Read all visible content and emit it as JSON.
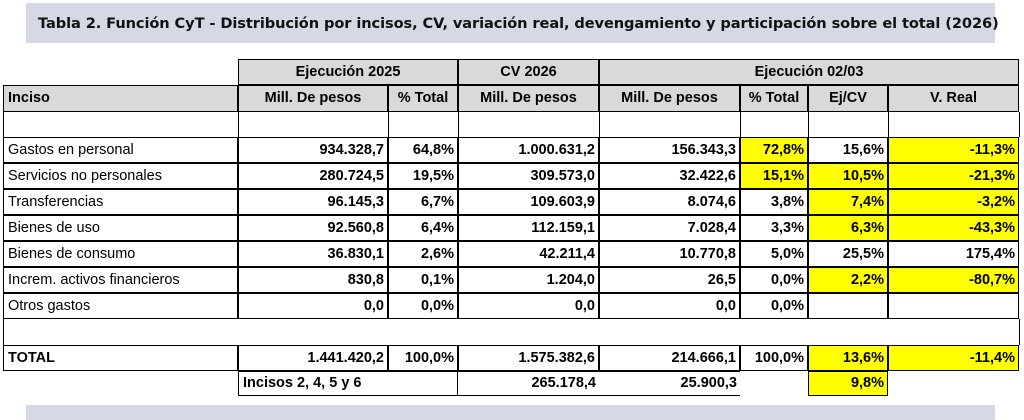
{
  "title": "Tabla 2. Función CyT - Distribución por incisos, CV, variación real, devengamiento y participación sobre el total (2026)",
  "groups": {
    "ejec2025": "Ejecución 2025",
    "cv2026": "CV 2026",
    "ejec0203": "Ejecución 02/03"
  },
  "columns": {
    "inciso": "Inciso",
    "mill1": "Mill. De pesos",
    "pct1": "% Total",
    "mill2": "Mill. De pesos",
    "mill3": "Mill. De pesos",
    "pct3": "% Total",
    "ejcv": "Ej/CV",
    "vreal": "V. Real"
  },
  "rows": [
    {
      "label": "Gastos en personal",
      "e2025": "934.328,7",
      "p2025": "64,8%",
      "cv": "1.000.631,2",
      "e0203": "156.343,3",
      "p0203": "72,8%",
      "ejcv": "15,6%",
      "vreal": "-11,3%"
    },
    {
      "label": "Servicios no personales",
      "e2025": "280.724,5",
      "p2025": "19,5%",
      "cv": "309.573,0",
      "e0203": "32.422,6",
      "p0203": "15,1%",
      "ejcv": "10,5%",
      "vreal": "-21,3%"
    },
    {
      "label": "Transferencias",
      "e2025": "96.145,3",
      "p2025": "6,7%",
      "cv": "109.603,9",
      "e0203": "8.074,6",
      "p0203": "3,8%",
      "ejcv": "7,4%",
      "vreal": "-3,2%"
    },
    {
      "label": "Bienes de uso",
      "e2025": "92.560,8",
      "p2025": "6,4%",
      "cv": "112.159,1",
      "e0203": "7.028,4",
      "p0203": "3,3%",
      "ejcv": "6,3%",
      "vreal": "-43,3%"
    },
    {
      "label": "Bienes de consumo",
      "e2025": "36.830,1",
      "p2025": "2,6%",
      "cv": "42.211,4",
      "e0203": "10.770,8",
      "p0203": "5,0%",
      "ejcv": "25,5%",
      "vreal": "175,4%"
    },
    {
      "label": "Increm. activos financieros",
      "e2025": "830,8",
      "p2025": "0,1%",
      "cv": "1.204,0",
      "e0203": "26,5",
      "p0203": "0,0%",
      "ejcv": "2,2%",
      "vreal": "-80,7%"
    },
    {
      "label": "Otros gastos",
      "e2025": "0,0",
      "p2025": "0,0%",
      "cv": "0,0",
      "e0203": "0,0",
      "p0203": "0,0%",
      "ejcv": "",
      "vreal": ""
    }
  ],
  "total": {
    "label": "TOTAL",
    "e2025": "1.441.420,2",
    "p2025": "100,0%",
    "cv": "1.575.382,6",
    "e0203": "214.666,1",
    "p0203": "100,0%",
    "ejcv": "13,6%",
    "vreal": "-11,4%"
  },
  "subtotal": {
    "label": "Incisos 2, 4, 5 y 6",
    "cv": "265.178,4",
    "e0203": "25.900,3",
    "ejcv": "9,8%"
  },
  "colors": {
    "highlight": "#ffff00",
    "header": "#d9d9d9",
    "banner": "#d5d9e5"
  }
}
